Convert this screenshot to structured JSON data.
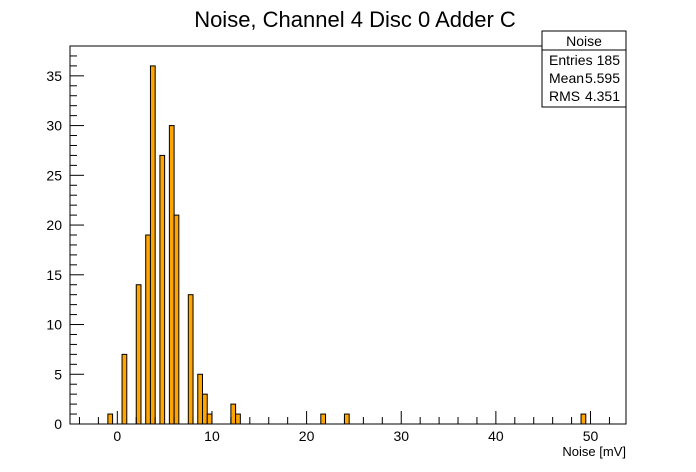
{
  "chart_data": {
    "type": "bar",
    "title": "Noise, Channel 4 Disc 0 Adder C",
    "xlabel": "Noise [mV]",
    "ylabel": "",
    "xlim": [
      -5,
      53.75
    ],
    "ylim": [
      0,
      38
    ],
    "bin_width": 0.5,
    "x_ticks": [
      0,
      10,
      20,
      30,
      40,
      50
    ],
    "y_ticks": [
      0,
      5,
      10,
      15,
      20,
      25,
      30,
      35
    ],
    "bins": [
      {
        "x": -1,
        "value": 1
      },
      {
        "x": 0.5,
        "value": 7
      },
      {
        "x": 2,
        "value": 14
      },
      {
        "x": 3,
        "value": 19
      },
      {
        "x": 3.5,
        "value": 36
      },
      {
        "x": 4.5,
        "value": 27
      },
      {
        "x": 5.5,
        "value": 30
      },
      {
        "x": 6,
        "value": 21
      },
      {
        "x": 7.5,
        "value": 13
      },
      {
        "x": 8.5,
        "value": 5
      },
      {
        "x": 9,
        "value": 3
      },
      {
        "x": 9.5,
        "value": 1
      },
      {
        "x": 12,
        "value": 2
      },
      {
        "x": 12.5,
        "value": 1
      },
      {
        "x": 21.5,
        "value": 1
      },
      {
        "x": 24,
        "value": 1
      },
      {
        "x": 49,
        "value": 1
      }
    ],
    "stats": {
      "name": "Noise",
      "entries_label": "Entries",
      "entries": "185",
      "mean_label": "Mean",
      "mean": "5.595",
      "rms_label": "RMS",
      "rms": "4.351"
    },
    "colors": {
      "fill": "#ffa500",
      "line": "#000000"
    },
    "grid": false,
    "legend": "top-right"
  }
}
